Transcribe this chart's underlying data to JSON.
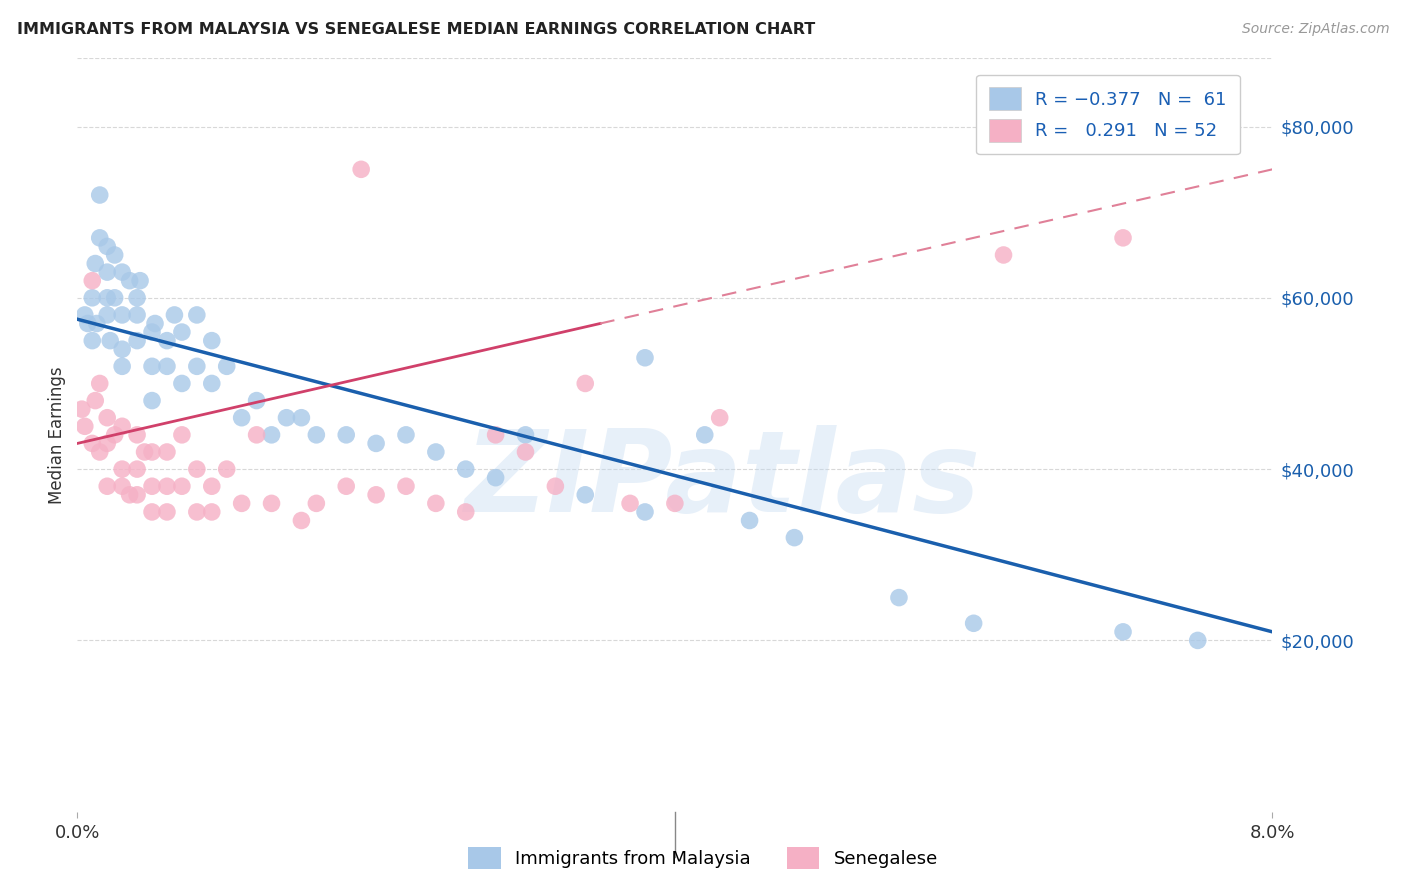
{
  "title": "IMMIGRANTS FROM MALAYSIA VS SENEGALESE MEDIAN EARNINGS CORRELATION CHART",
  "source": "Source: ZipAtlas.com",
  "ylabel": "Median Earnings",
  "xlim": [
    0.0,
    0.08
  ],
  "ylim": [
    0,
    88000
  ],
  "yticks": [
    20000,
    40000,
    60000,
    80000
  ],
  "ytick_labels": [
    "$20,000",
    "$40,000",
    "$60,000",
    "$80,000"
  ],
  "xtick_labels": [
    "0.0%",
    "8.0%"
  ],
  "watermark": "ZIPatlas",
  "series1_label": "Immigrants from Malaysia",
  "series2_label": "Senegalese",
  "series1_color": "#a8c8e8",
  "series2_color": "#f5b0c5",
  "line1_color": "#1a5fad",
  "line2_color": "#d0406a",
  "line2_dash_color": "#e08098",
  "background_color": "#ffffff",
  "grid_color": "#d8d8d8",
  "blue_line_x0": 0.0,
  "blue_line_y0": 57500,
  "blue_line_x1": 0.08,
  "blue_line_y1": 21000,
  "pink_line_solid_x0": 0.0,
  "pink_line_solid_y0": 43000,
  "pink_line_solid_x1": 0.035,
  "pink_line_solid_y1": 57000,
  "pink_line_dash_x0": 0.035,
  "pink_line_dash_y0": 57000,
  "pink_line_dash_x1": 0.08,
  "pink_line_dash_y1": 75000,
  "malaysia_x": [
    0.0005,
    0.0007,
    0.001,
    0.001,
    0.0012,
    0.0013,
    0.0015,
    0.0015,
    0.002,
    0.002,
    0.002,
    0.002,
    0.0022,
    0.0025,
    0.0025,
    0.003,
    0.003,
    0.003,
    0.003,
    0.0035,
    0.004,
    0.004,
    0.004,
    0.0042,
    0.005,
    0.005,
    0.005,
    0.0052,
    0.006,
    0.006,
    0.0065,
    0.007,
    0.007,
    0.008,
    0.008,
    0.009,
    0.009,
    0.01,
    0.011,
    0.012,
    0.013,
    0.014,
    0.015,
    0.016,
    0.018,
    0.02,
    0.022,
    0.024,
    0.026,
    0.028,
    0.03,
    0.034,
    0.038,
    0.042,
    0.045,
    0.048,
    0.038,
    0.055,
    0.06,
    0.07,
    0.075
  ],
  "malaysia_y": [
    58000,
    57000,
    55000,
    60000,
    64000,
    57000,
    72000,
    67000,
    66000,
    63000,
    60000,
    58000,
    55000,
    65000,
    60000,
    63000,
    58000,
    54000,
    52000,
    62000,
    60000,
    58000,
    55000,
    62000,
    56000,
    52000,
    48000,
    57000,
    55000,
    52000,
    58000,
    56000,
    50000,
    58000,
    52000,
    55000,
    50000,
    52000,
    46000,
    48000,
    44000,
    46000,
    46000,
    44000,
    44000,
    43000,
    44000,
    42000,
    40000,
    39000,
    44000,
    37000,
    35000,
    44000,
    34000,
    32000,
    53000,
    25000,
    22000,
    21000,
    20000
  ],
  "senegalese_x": [
    0.0003,
    0.0005,
    0.001,
    0.001,
    0.0012,
    0.0015,
    0.0015,
    0.002,
    0.002,
    0.002,
    0.0025,
    0.003,
    0.003,
    0.003,
    0.0035,
    0.004,
    0.004,
    0.004,
    0.0045,
    0.005,
    0.005,
    0.005,
    0.006,
    0.006,
    0.006,
    0.007,
    0.007,
    0.008,
    0.008,
    0.009,
    0.009,
    0.01,
    0.011,
    0.012,
    0.013,
    0.015,
    0.016,
    0.018,
    0.02,
    0.022,
    0.024,
    0.026,
    0.028,
    0.03,
    0.034,
    0.037,
    0.04,
    0.043,
    0.062,
    0.07,
    0.032,
    0.019
  ],
  "senegalese_y": [
    47000,
    45000,
    62000,
    43000,
    48000,
    50000,
    42000,
    46000,
    43000,
    38000,
    44000,
    45000,
    40000,
    38000,
    37000,
    44000,
    40000,
    37000,
    42000,
    42000,
    38000,
    35000,
    42000,
    38000,
    35000,
    44000,
    38000,
    40000,
    35000,
    38000,
    35000,
    40000,
    36000,
    44000,
    36000,
    34000,
    36000,
    38000,
    37000,
    38000,
    36000,
    35000,
    44000,
    42000,
    50000,
    36000,
    36000,
    46000,
    65000,
    67000,
    38000,
    75000
  ]
}
